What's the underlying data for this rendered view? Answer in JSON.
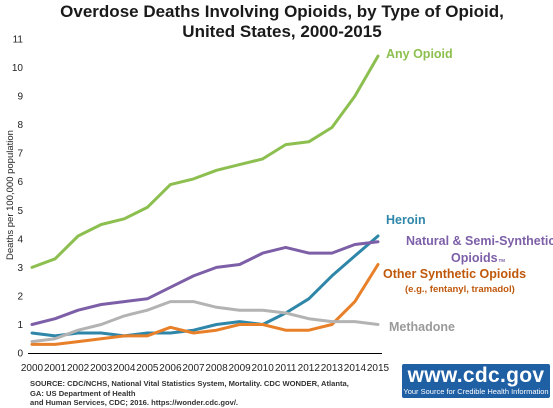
{
  "chart_data": {
    "type": "line",
    "title": "Overdose Deaths Involving Opioids, by Type of Opioid,",
    "title_line2": "United States, 2000-2015",
    "ylabel": "Deaths per 100,000 population",
    "xlabel": "",
    "ylim": [
      0,
      11
    ],
    "yticks": [
      0,
      1,
      2,
      3,
      4,
      5,
      6,
      7,
      8,
      9,
      10,
      11
    ],
    "x": [
      2000,
      2001,
      2002,
      2003,
      2004,
      2005,
      2006,
      2007,
      2008,
      2009,
      2010,
      2011,
      2012,
      2013,
      2014,
      2015
    ],
    "grid": false,
    "legend": "inline labels at line ends",
    "series": [
      {
        "name": "Any Opioid",
        "color": "#8cbf4f",
        "values": [
          3.0,
          3.3,
          4.1,
          4.5,
          4.7,
          5.1,
          5.9,
          6.1,
          6.4,
          6.6,
          6.8,
          7.3,
          7.4,
          7.9,
          9.0,
          10.4
        ]
      },
      {
        "name": "Heroin",
        "color": "#2e86a8",
        "values": [
          0.7,
          0.6,
          0.7,
          0.7,
          0.6,
          0.7,
          0.7,
          0.8,
          1.0,
          1.1,
          1.0,
          1.4,
          1.9,
          2.7,
          3.4,
          4.1
        ]
      },
      {
        "name": "Natural & Semi-Synthetic Opioids",
        "color": "#7d5fa8",
        "values": [
          1.0,
          1.2,
          1.5,
          1.7,
          1.8,
          1.9,
          2.3,
          2.7,
          3.0,
          3.1,
          3.5,
          3.7,
          3.5,
          3.5,
          3.8,
          3.9
        ]
      },
      {
        "name": "Other Synthetic Opioids",
        "color": "#e8802a",
        "values": [
          0.3,
          0.3,
          0.4,
          0.5,
          0.6,
          0.6,
          0.9,
          0.7,
          0.8,
          1.0,
          1.0,
          0.8,
          0.8,
          1.0,
          1.8,
          3.1
        ]
      },
      {
        "name": "Methadone",
        "color": "#b3b3b3",
        "values": [
          0.4,
          0.5,
          0.8,
          1.0,
          1.3,
          1.5,
          1.8,
          1.8,
          1.6,
          1.5,
          1.5,
          1.4,
          1.2,
          1.1,
          1.1,
          1.0
        ]
      }
    ],
    "labels": {
      "any_opioid": "Any Opioid",
      "heroin": "Heroin",
      "natural_line1": "Natural & Semi-Synthetic",
      "natural_line2": "Opioids",
      "natural_mark": "TM",
      "other_synthetic": "Other Synthetic Opioids",
      "other_synthetic_sub": "(e.g., fentanyl, tramadol)",
      "methadone": "Methadone"
    }
  },
  "footer": {
    "source_line1": "SOURCE: CDC/NCHS, National Vital Statistics System, Mortality. CDC WONDER, Atlanta, GA: US Department of Health",
    "source_line2": "and Human Services, CDC; 2016. https://wonder.cdc.gov/."
  },
  "badge": {
    "url": "www.cdc.gov",
    "tagline": "Your Source for Credible Health Information",
    "color": "#1f5fa4"
  }
}
